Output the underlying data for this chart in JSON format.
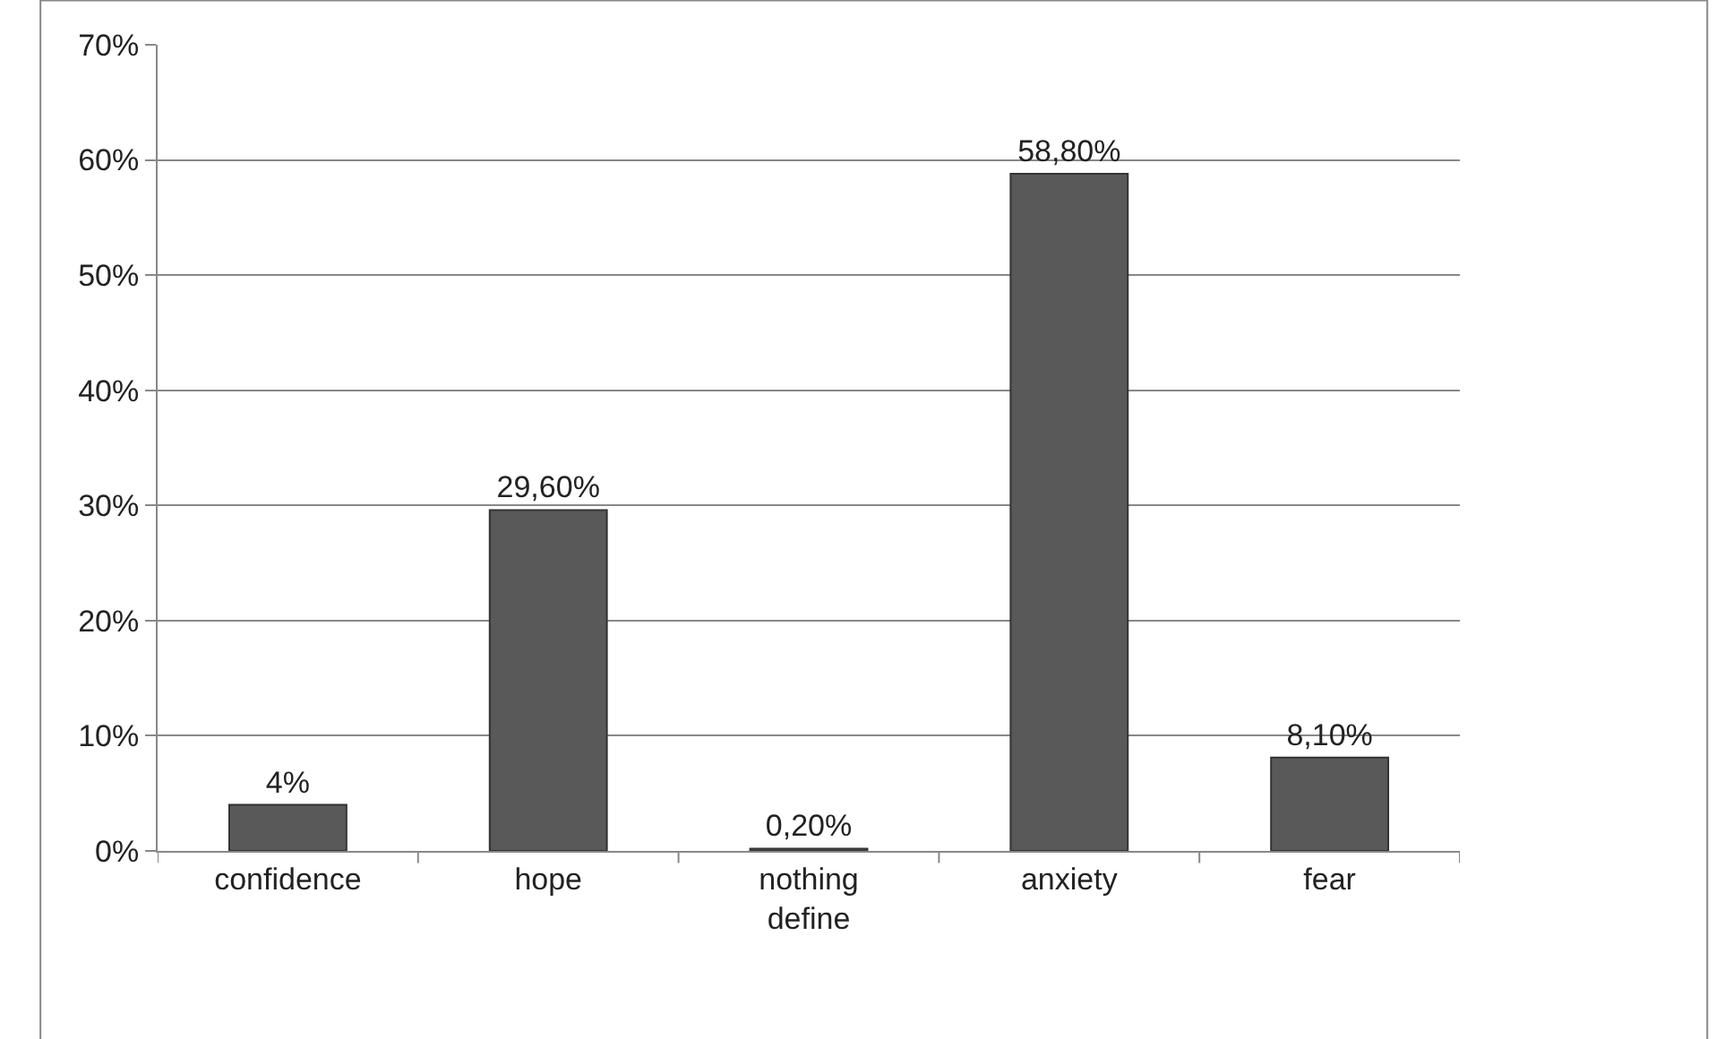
{
  "chart_data": {
    "type": "bar",
    "categories": [
      "confidence",
      "hope",
      "nothing define",
      "anxiety",
      "fear"
    ],
    "values": [
      4,
      29.6,
      0.2,
      58.8,
      8.1
    ],
    "value_labels": [
      "4%",
      "29,60%",
      "0,20%",
      "58,80%",
      "8,10%"
    ],
    "color": "#595959",
    "ylim": [
      0,
      70
    ],
    "yticks": [
      {
        "value": 0,
        "label": "0%"
      },
      {
        "value": 10,
        "label": "10%"
      },
      {
        "value": 20,
        "label": "20%"
      },
      {
        "value": 30,
        "label": "30%"
      },
      {
        "value": 40,
        "label": "40%"
      },
      {
        "value": 50,
        "label": "50%"
      },
      {
        "value": 60,
        "label": "60%"
      },
      {
        "value": 70,
        "label": "70%"
      }
    ],
    "grid": "y",
    "legend": false
  }
}
